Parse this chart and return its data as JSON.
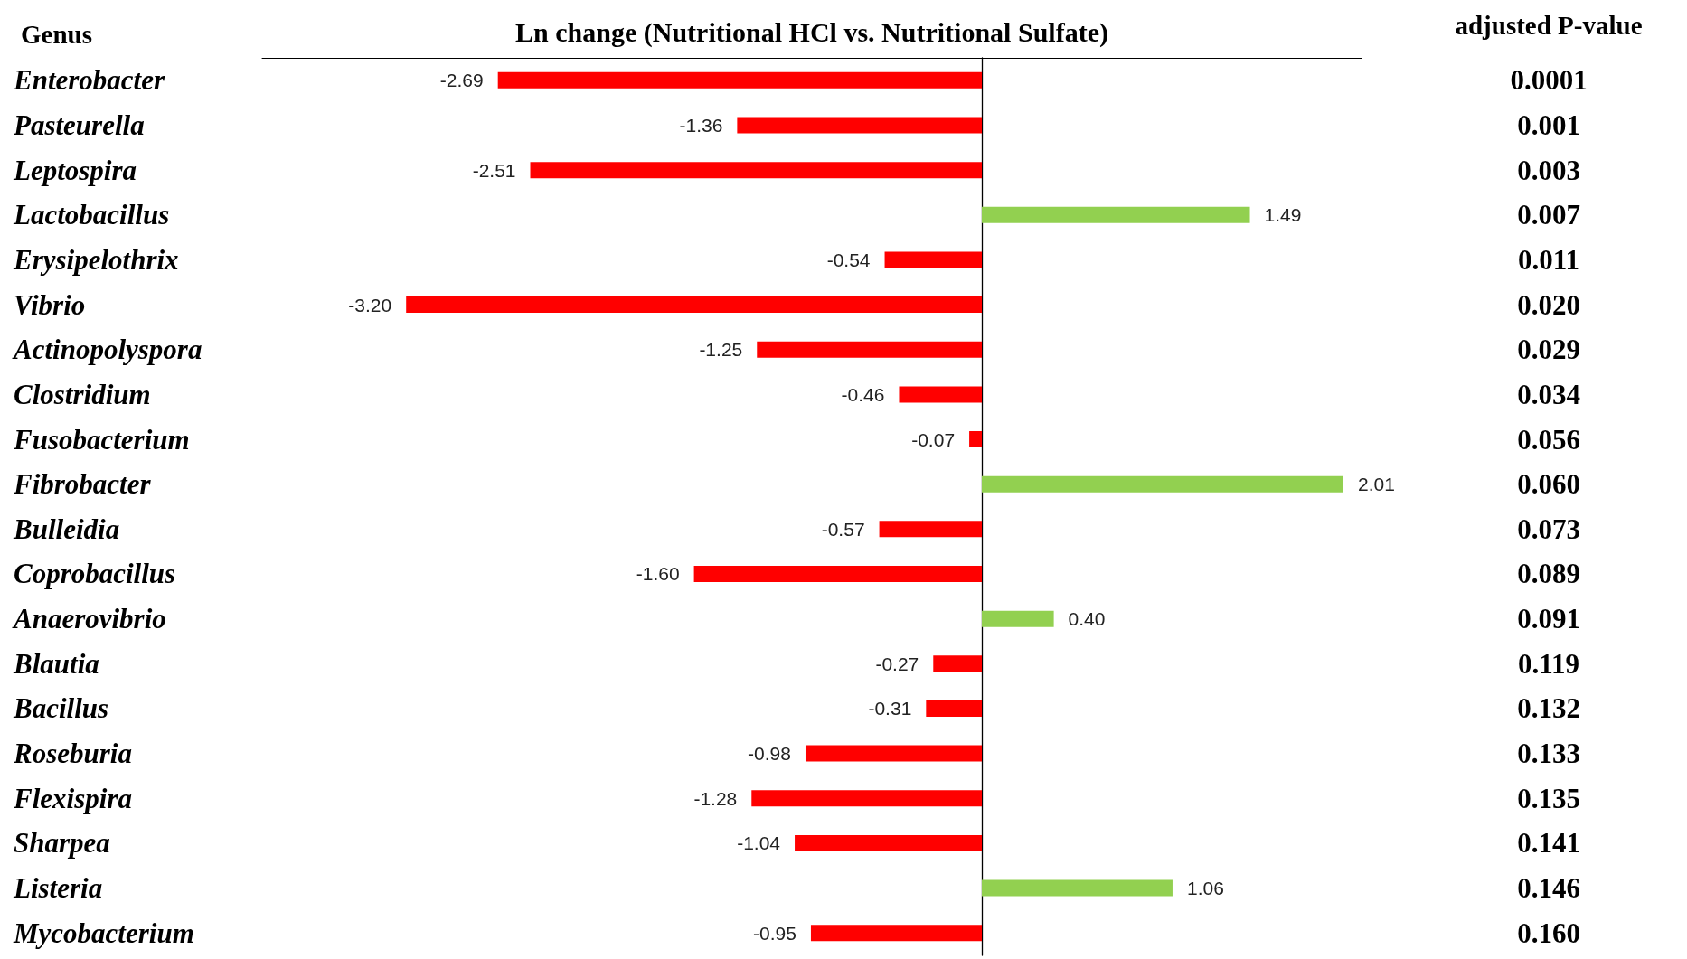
{
  "chart_data": {
    "type": "bar",
    "orientation": "horizontal",
    "xlabel": "Ln change (Nutritional HCl vs. Nutritional Sulfate)",
    "ylabel": "Genus",
    "y2label": "adjusted P-value",
    "categories": [
      "Enterobacter",
      "Pasteurella",
      "Leptospira",
      "Lactobacillus",
      "Erysipelothrix",
      "Vibrio",
      "Actinopolyspora",
      "Clostridium",
      "Fusobacterium",
      "Fibrobacter",
      "Bulleidia",
      "Coprobacillus",
      "Anaerovibrio",
      "Blautia",
      "Bacillus",
      "Roseburia",
      "Flexispira",
      "Sharpea",
      "Listeria",
      "Mycobacterium"
    ],
    "y2_categories": [
      "0.0001",
      "0.001",
      "0.003",
      "0.007",
      "0.011",
      "0.020",
      "0.029",
      "0.034",
      "0.056",
      "0.060",
      "0.073",
      "0.089",
      "0.091",
      "0.119",
      "0.132",
      "0.133",
      "0.135",
      "0.141",
      "0.146",
      "0.160"
    ],
    "values": [
      -2.69,
      -1.36,
      -2.51,
      1.49,
      -0.54,
      -3.2,
      -1.25,
      -0.46,
      -0.07,
      2.01,
      -0.57,
      -1.6,
      0.4,
      -0.27,
      -0.31,
      -0.98,
      -1.28,
      -1.04,
      1.06,
      -0.95
    ],
    "value_labels": [
      "-2.69",
      "-1.36",
      "-2.51",
      "1.49",
      "-0.54",
      "-3.20",
      "-1.25",
      "-0.46",
      "-0.07",
      "2.01",
      "-0.57",
      "-1.60",
      "0.40",
      "-0.27",
      "-0.31",
      "-0.98",
      "-1.28",
      "-1.04",
      "1.06",
      "-0.95"
    ],
    "colors": [
      "#ff0000",
      "#ff0000",
      "#ff0000",
      "#92d050",
      "#ff0000",
      "#ff0000",
      "#ff0000",
      "#ff0000",
      "#ff0000",
      "#92d050",
      "#ff0000",
      "#ff0000",
      "#92d050",
      "#ff0000",
      "#ff0000",
      "#ff0000",
      "#ff0000",
      "#ff0000",
      "#92d050",
      "#ff0000"
    ],
    "grid": false
  }
}
